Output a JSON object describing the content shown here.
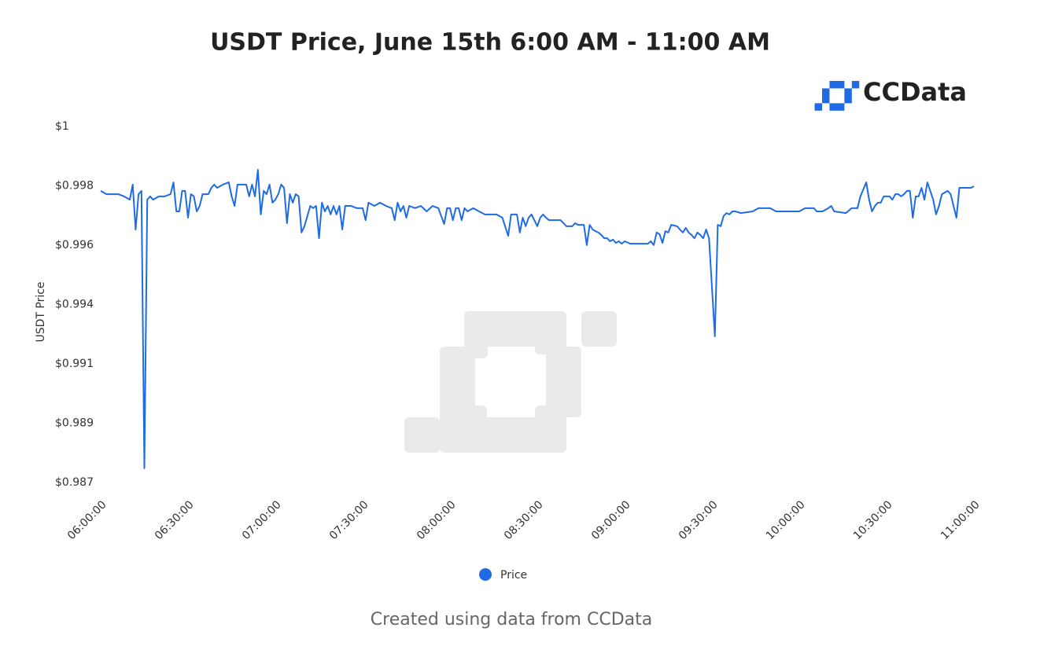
{
  "chart_data": {
    "type": "line",
    "title": "USDT Price, June 15th 6:00 AM - 11:00 AM",
    "logo": "CCData",
    "ylabel": "USDT Price",
    "footer": "Created using data from CCData",
    "ylim": [
      0.987,
      1
    ],
    "yticks": [
      {
        "value": 1,
        "label": "$1"
      },
      {
        "value": 0.99783,
        "label": "$0.998"
      },
      {
        "value": 0.99567,
        "label": "$0.996"
      },
      {
        "value": 0.9935,
        "label": "$0.994"
      },
      {
        "value": 0.99133,
        "label": "$0.991"
      },
      {
        "value": 0.98917,
        "label": "$0.989"
      },
      {
        "value": 0.987,
        "label": "$0.987"
      }
    ],
    "xlim": [
      "06:00:00",
      "11:00:00"
    ],
    "xticks": [
      "06:00:00",
      "06:30:00",
      "07:00:00",
      "07:30:00",
      "08:00:00",
      "08:30:00",
      "09:00:00",
      "09:30:00",
      "10:00:00",
      "10:30:00",
      "11:00:00"
    ],
    "grid": false,
    "x": [
      "06:00:00",
      "06:02:00",
      "06:06:00",
      "06:08:00",
      "06:10:00",
      "06:11:00",
      "06:12:00",
      "06:13:00",
      "06:14:00",
      "06:15:00",
      "06:16:00",
      "06:17:00",
      "06:18:00",
      "06:20:00",
      "06:22:00",
      "06:24:00",
      "06:25:00",
      "06:26:00",
      "06:27:00",
      "06:28:00",
      "06:29:00",
      "06:30:00",
      "06:31:00",
      "06:32:00",
      "06:33:00",
      "06:34:00",
      "06:35:00",
      "06:37:00",
      "06:38:00",
      "06:39:00",
      "06:40:00",
      "06:42:00",
      "06:44:00",
      "06:45:00",
      "06:46:00",
      "06:47:00",
      "06:50:00",
      "06:51:00",
      "06:52:00",
      "06:53:00",
      "06:54:00",
      "06:55:00",
      "06:56:00",
      "06:57:00",
      "06:58:00",
      "06:59:00",
      "07:00:00",
      "07:01:00",
      "07:02:00",
      "07:03:00",
      "07:04:00",
      "07:05:00",
      "07:06:00",
      "07:07:00",
      "07:08:00",
      "07:09:00",
      "07:10:00",
      "07:12:00",
      "07:13:00",
      "07:14:00",
      "07:15:00",
      "07:16:00",
      "07:17:00",
      "07:18:00",
      "07:19:00",
      "07:20:00",
      "07:21:00",
      "07:22:00",
      "07:23:00",
      "07:24:00",
      "07:26:00",
      "07:28:00",
      "07:30:00",
      "07:31:00",
      "07:32:00",
      "07:34:00",
      "07:36:00",
      "07:38:00",
      "07:40:00",
      "07:41:00",
      "07:42:00",
      "07:43:00",
      "07:44:00",
      "07:45:00",
      "07:46:00",
      "07:48:00",
      "07:50:00",
      "07:52:00",
      "07:54:00",
      "07:56:00",
      "07:58:00",
      "07:59:00",
      "08:00:00",
      "08:01:00",
      "08:02:00",
      "08:03:00",
      "08:04:00",
      "08:05:00",
      "08:06:00",
      "08:08:00",
      "08:10:00",
      "08:12:00",
      "08:14:00",
      "08:16:00",
      "08:18:00",
      "08:20:00",
      "08:21:00",
      "08:23:00",
      "08:24:00",
      "08:25:00",
      "08:26:00",
      "08:27:00",
      "08:28:00",
      "08:30:00",
      "08:31:00",
      "08:32:00",
      "08:33:00",
      "08:34:00",
      "08:36:00",
      "08:38:00",
      "08:40:00",
      "08:42:00",
      "08:43:00",
      "08:44:00",
      "08:46:00",
      "08:47:00",
      "08:48:00",
      "08:49:00",
      "08:50:00",
      "08:51:00",
      "08:52:00",
      "08:53:00",
      "08:54:00",
      "08:55:00",
      "08:56:00",
      "08:57:00",
      "08:58:00",
      "08:59:00",
      "09:00:00",
      "09:02:00",
      "09:04:00",
      "09:06:00",
      "09:08:00",
      "09:09:00",
      "09:10:00",
      "09:11:00",
      "09:12:00",
      "09:13:00",
      "09:14:00",
      "09:15:00",
      "09:16:00",
      "09:18:00",
      "09:19:00",
      "09:20:00",
      "09:21:00",
      "09:22:00",
      "09:23:00",
      "09:24:00",
      "09:25:00",
      "09:26:00",
      "09:27:00",
      "09:28:00",
      "09:29:00",
      "09:31:00",
      "09:32:00",
      "09:33:00",
      "09:34:00",
      "09:35:00",
      "09:36:00",
      "09:37:00",
      "09:38:00",
      "09:40:00",
      "09:44:00",
      "09:46:00",
      "09:50:00",
      "09:52:00",
      "09:56:00",
      "10:00:00",
      "10:02:00",
      "10:05:00",
      "10:06:00",
      "10:08:00",
      "10:10:00",
      "10:11:00",
      "10:12:00",
      "10:16:00",
      "10:18:00",
      "10:20:00",
      "10:21:00",
      "10:23:00",
      "10:24:00",
      "10:25:00",
      "10:26:00",
      "10:27:00",
      "10:28:00",
      "10:29:00",
      "10:31:00",
      "10:32:00",
      "10:33:00",
      "10:34:00",
      "10:35:00",
      "10:36:00",
      "10:37:00",
      "10:38:00",
      "10:39:00",
      "10:40:00",
      "10:41:00",
      "10:42:00",
      "10:43:00",
      "10:44:00",
      "10:45:00",
      "10:46:00",
      "10:47:00",
      "10:48:00",
      "10:49:00",
      "10:51:00",
      "10:52:00",
      "10:54:00",
      "10:55:00",
      "10:57:00",
      "10:59:00",
      "11:00:00"
    ],
    "series": [
      {
        "name": "Price",
        "color": "#1f6be6",
        "values": [
          0.99765,
          0.99753,
          0.99753,
          0.99745,
          0.99733,
          0.99788,
          0.99624,
          0.99753,
          0.99765,
          0.98752,
          0.99733,
          0.99745,
          0.99733,
          0.99745,
          0.99745,
          0.99753,
          0.99796,
          0.9969,
          0.9969,
          0.99765,
          0.99765,
          0.99667,
          0.99753,
          0.99745,
          0.9969,
          0.9971,
          0.99753,
          0.99753,
          0.99776,
          0.99788,
          0.99776,
          0.99788,
          0.99796,
          0.99745,
          0.9971,
          0.99788,
          0.99788,
          0.99745,
          0.99788,
          0.99745,
          0.99842,
          0.99679,
          0.99765,
          0.99753,
          0.99788,
          0.99722,
          0.99733,
          0.99753,
          0.99788,
          0.99776,
          0.99647,
          0.99753,
          0.99722,
          0.99753,
          0.99745,
          0.99613,
          0.99636,
          0.9971,
          0.99702,
          0.9971,
          0.99592,
          0.99722,
          0.9969,
          0.9971,
          0.99679,
          0.9971,
          0.99679,
          0.9971,
          0.99624,
          0.9971,
          0.9971,
          0.99702,
          0.99702,
          0.99658,
          0.99722,
          0.9971,
          0.99722,
          0.9971,
          0.99702,
          0.99658,
          0.99722,
          0.9969,
          0.9971,
          0.99667,
          0.9971,
          0.99702,
          0.9971,
          0.9969,
          0.9971,
          0.99702,
          0.99644,
          0.99702,
          0.99702,
          0.99658,
          0.99702,
          0.99702,
          0.99658,
          0.99702,
          0.9969,
          0.99702,
          0.9969,
          0.99679,
          0.99679,
          0.99679,
          0.99667,
          0.99601,
          0.99679,
          0.99679,
          0.99613,
          0.99667,
          0.99636,
          0.99667,
          0.99679,
          0.99636,
          0.99667,
          0.99679,
          0.99667,
          0.99658,
          0.99658,
          0.99658,
          0.99636,
          0.99636,
          0.99647,
          0.99641,
          0.99641,
          0.99567,
          0.99641,
          0.99624,
          0.99618,
          0.99613,
          0.99604,
          0.99592,
          0.99592,
          0.99581,
          0.99587,
          0.99575,
          0.99581,
          0.99572,
          0.99581,
          0.99572,
          0.99572,
          0.99572,
          0.99572,
          0.99581,
          0.99567,
          0.99613,
          0.99607,
          0.99575,
          0.99618,
          0.99613,
          0.99641,
          0.99636,
          0.99624,
          0.99613,
          0.9963,
          0.99613,
          0.99604,
          0.99592,
          0.99613,
          0.99604,
          0.99592,
          0.99624,
          0.99592,
          0.99234,
          0.99641,
          0.99636,
          0.99673,
          0.99684,
          0.99679,
          0.9969,
          0.9969,
          0.99684,
          0.9969,
          0.99702,
          0.99702,
          0.9969,
          0.9969,
          0.9969,
          0.99702,
          0.99702,
          0.9969,
          0.9969,
          0.99702,
          0.9971,
          0.9969,
          0.99684,
          0.99702,
          0.99702,
          0.99745,
          0.99796,
          0.99733,
          0.9969,
          0.9971,
          0.99722,
          0.99722,
          0.99745,
          0.99745,
          0.99733,
          0.99753,
          0.99753,
          0.99745,
          0.99753,
          0.99765,
          0.99765,
          0.99667,
          0.99745,
          0.99745,
          0.99776,
          0.99733,
          0.99796,
          0.99765,
          0.99733,
          0.99679,
          0.9971,
          0.99753,
          0.99765,
          0.99753,
          0.99667,
          0.99776,
          0.99776,
          0.99776,
          0.99782
        ]
      }
    ]
  }
}
